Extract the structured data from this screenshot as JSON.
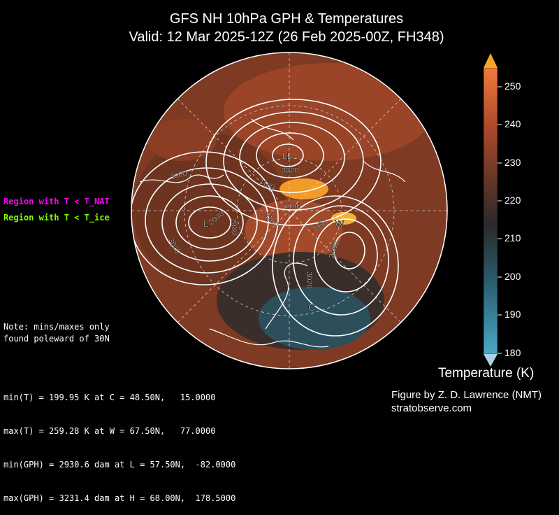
{
  "title": {
    "line1": "GFS NH 10hPa GPH & Temperatures",
    "line2": "Valid: 12 Mar 2025-12Z  (26 Feb 2025-00Z, FH348)"
  },
  "legend": {
    "nat": "Region with T < T_NAT",
    "ice": "Region with T < T_ice",
    "nat_color": "#ff00ff",
    "ice_color": "#7fff00"
  },
  "note": "Note: mins/maxes only\nfound poleward of 30N",
  "stats": [
    "min(T) = 199.95 K at C = 48.50N,   15.0000",
    "max(T) = 259.28 K at W = 67.50N,   77.0000",
    "min(GPH) = 2930.6 dam at L = 57.50N,  -82.0000",
    "max(GPH) = 3231.4 dam at H = 68.00N,  178.5000"
  ],
  "markers": {
    "H": "H",
    "L": "L",
    "W": "W",
    "C": "C"
  },
  "contour_labels": [
    "3060",
    "3020",
    "2940",
    "2980",
    "3100",
    "3180",
    "3220",
    "3140",
    "3060",
    "2980",
    "3020"
  ],
  "colorbar": {
    "title": "Temperature (K)",
    "ticks": [
      "250",
      "240",
      "230",
      "220",
      "210",
      "200",
      "190",
      "180"
    ],
    "min": 180,
    "max": 255
  },
  "credit": {
    "line1": "Figure by Z. D. Lawrence (NMT)",
    "line2": "stratobserve.com"
  }
}
